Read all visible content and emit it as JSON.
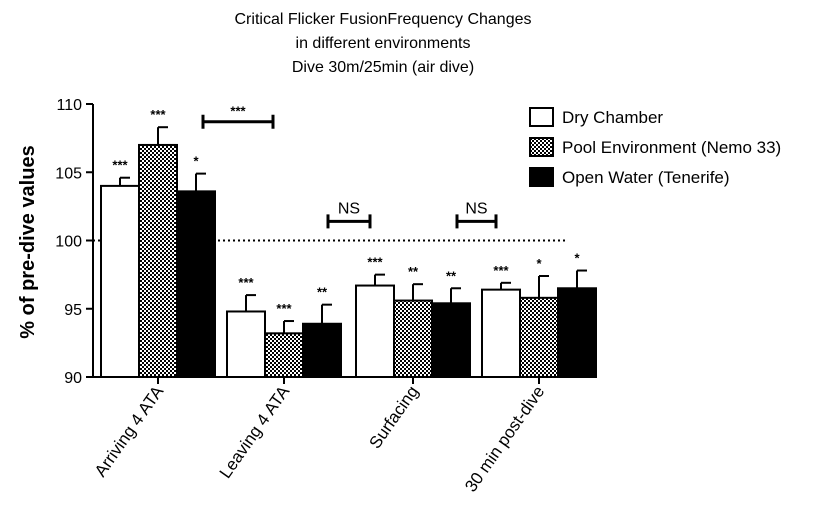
{
  "chart_data": {
    "type": "bar",
    "title_lines": [
      "Critical Flicker FusionFrequency Changes",
      "in different environments",
      "Dive 30m/25min (air dive)"
    ],
    "ylabel": "% of pre-dive values",
    "xlabel": "",
    "ylim": [
      90,
      110
    ],
    "yticks": [
      90,
      95,
      100,
      105,
      110
    ],
    "reference_line": 100,
    "categories": [
      "Arriving 4 ATA",
      "Leaving 4 ATA",
      "Surfacing",
      "30 min post-dive"
    ],
    "series": [
      {
        "name": "Dry Chamber",
        "fill": "white",
        "values": [
          104.0,
          94.8,
          96.7,
          96.4
        ],
        "errors": [
          0.6,
          1.2,
          0.8,
          0.5
        ],
        "significance": [
          "***",
          "***",
          "***",
          "***"
        ]
      },
      {
        "name": "Pool Environment (Nemo 33)",
        "fill": "checker",
        "values": [
          107.0,
          93.2,
          95.6,
          95.8
        ],
        "errors": [
          1.3,
          0.9,
          1.2,
          1.6
        ],
        "significance": [
          "***",
          "***",
          "**",
          "*"
        ]
      },
      {
        "name": "Open Water (Tenerife)",
        "fill": "black",
        "values": [
          103.6,
          93.9,
          95.4,
          96.5
        ],
        "errors": [
          1.3,
          1.4,
          1.1,
          1.3
        ],
        "significance": [
          "*",
          "**",
          "**",
          "*"
        ]
      }
    ],
    "comparisons": [
      {
        "between": [
          "Arriving 4 ATA",
          "Leaving 4 ATA"
        ],
        "label": "***",
        "y": 108.7
      },
      {
        "between": [
          "Leaving 4 ATA",
          "Surfacing"
        ],
        "label": "NS",
        "y": 101.4
      },
      {
        "between": [
          "Surfacing",
          "30 min post-dive"
        ],
        "label": "NS",
        "y": 101.4
      }
    ],
    "legend_position": "top-right",
    "grid": false,
    "colors": {
      "axis": "#000000",
      "bar_white": "#ffffff",
      "bar_black": "#000000"
    }
  }
}
